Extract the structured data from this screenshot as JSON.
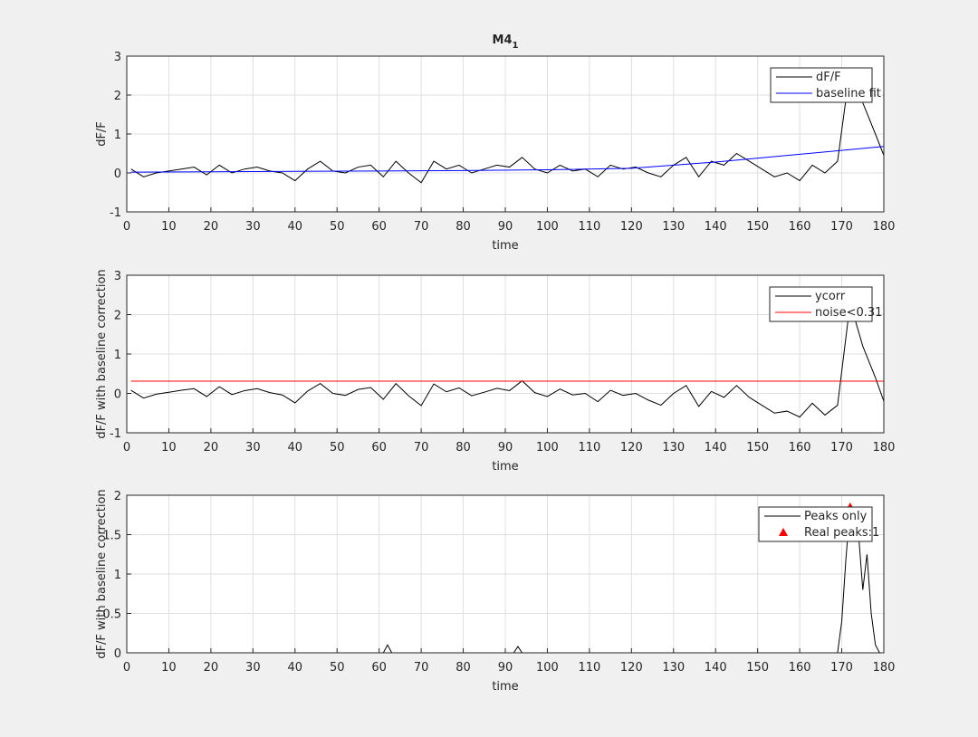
{
  "chart_data": [
    {
      "type": "line",
      "title": "M4",
      "title_subscript": "1",
      "xlabel": "time",
      "ylabel": "dF/F",
      "xlim": [
        0,
        180
      ],
      "xticks": [
        0,
        10,
        20,
        30,
        40,
        50,
        60,
        70,
        80,
        90,
        100,
        110,
        120,
        130,
        140,
        150,
        160,
        170,
        180
      ],
      "ylim": [
        -1,
        3
      ],
      "yticks": [
        -1,
        0,
        1,
        2,
        3
      ],
      "grid": true,
      "legend": "top-right",
      "series": [
        {
          "name": "dF/F",
          "color": "#000000",
          "x": [
            1,
            4,
            7,
            10,
            13,
            16,
            19,
            22,
            25,
            28,
            31,
            34,
            37,
            40,
            43,
            46,
            49,
            52,
            55,
            58,
            61,
            64,
            67,
            70,
            73,
            76,
            79,
            82,
            85,
            88,
            91,
            94,
            97,
            100,
            103,
            106,
            109,
            112,
            115,
            118,
            121,
            124,
            127,
            130,
            133,
            136,
            139,
            142,
            145,
            148,
            151,
            154,
            157,
            160,
            163,
            166,
            169,
            172,
            175,
            178,
            180
          ],
          "values": [
            0.1,
            -0.1,
            0.0,
            0.05,
            0.1,
            0.15,
            -0.05,
            0.2,
            0.0,
            0.1,
            0.15,
            0.05,
            0.0,
            -0.2,
            0.1,
            0.3,
            0.05,
            0.0,
            0.15,
            0.2,
            -0.1,
            0.3,
            0.0,
            -0.25,
            0.3,
            0.1,
            0.2,
            0.0,
            0.1,
            0.2,
            0.15,
            0.4,
            0.1,
            0.0,
            0.2,
            0.05,
            0.1,
            -0.1,
            0.2,
            0.1,
            0.15,
            0.0,
            -0.1,
            0.2,
            0.4,
            -0.1,
            0.3,
            0.2,
            0.5,
            0.3,
            0.1,
            -0.1,
            0.0,
            -0.2,
            0.2,
            0.0,
            0.3,
            2.7,
            1.8,
            1.0,
            0.45
          ]
        },
        {
          "name": "baseline fit",
          "color": "#0000ff",
          "x": [
            1,
            20,
            40,
            60,
            80,
            100,
            120,
            140,
            160,
            180
          ],
          "values": [
            0.02,
            0.03,
            0.04,
            0.05,
            0.06,
            0.08,
            0.12,
            0.28,
            0.48,
            0.68
          ]
        }
      ]
    },
    {
      "type": "line",
      "xlabel": "time",
      "ylabel": "dF/F with baseline correction",
      "xlim": [
        0,
        180
      ],
      "xticks": [
        0,
        10,
        20,
        30,
        40,
        50,
        60,
        70,
        80,
        90,
        100,
        110,
        120,
        130,
        140,
        150,
        160,
        170,
        180
      ],
      "ylim": [
        -1,
        3
      ],
      "yticks": [
        -1,
        0,
        1,
        2,
        3
      ],
      "grid": true,
      "legend": "top-right",
      "series": [
        {
          "name": "ycorr",
          "color": "#000000",
          "x": [
            1,
            4,
            7,
            10,
            13,
            16,
            19,
            22,
            25,
            28,
            31,
            34,
            37,
            40,
            43,
            46,
            49,
            52,
            55,
            58,
            61,
            64,
            67,
            70,
            73,
            76,
            79,
            82,
            85,
            88,
            91,
            94,
            97,
            100,
            103,
            106,
            109,
            112,
            115,
            118,
            121,
            124,
            127,
            130,
            133,
            136,
            139,
            142,
            145,
            148,
            151,
            154,
            157,
            160,
            163,
            166,
            169,
            172,
            175,
            178,
            180
          ],
          "values": [
            0.08,
            -0.12,
            -0.02,
            0.03,
            0.08,
            0.12,
            -0.08,
            0.17,
            -0.03,
            0.07,
            0.12,
            0.02,
            -0.04,
            -0.24,
            0.06,
            0.25,
            0.0,
            -0.05,
            0.1,
            0.15,
            -0.15,
            0.25,
            -0.06,
            -0.31,
            0.24,
            0.04,
            0.14,
            -0.06,
            0.03,
            0.13,
            0.07,
            0.32,
            0.02,
            -0.08,
            0.11,
            -0.04,
            0.0,
            -0.21,
            0.08,
            -0.05,
            0.0,
            -0.17,
            -0.3,
            0.0,
            0.2,
            -0.33,
            0.05,
            -0.1,
            0.2,
            -0.1,
            -0.3,
            -0.5,
            -0.45,
            -0.6,
            -0.25,
            -0.55,
            -0.3,
            2.3,
            1.2,
            0.4,
            -0.2
          ]
        },
        {
          "name": "noise<0.31",
          "color": "#ff0000",
          "x": [
            1,
            180
          ],
          "values": [
            0.31,
            0.31
          ]
        }
      ]
    },
    {
      "type": "line",
      "xlabel": "time",
      "ylabel": "dF/F with baseline correction",
      "xlim": [
        0,
        180
      ],
      "xticks": [
        0,
        10,
        20,
        30,
        40,
        50,
        60,
        70,
        80,
        90,
        100,
        110,
        120,
        130,
        140,
        150,
        160,
        170,
        180
      ],
      "ylim": [
        0,
        2
      ],
      "yticks": [
        0,
        0.5,
        1,
        1.5,
        2
      ],
      "grid": true,
      "legend": "top-right",
      "series": [
        {
          "name": "Peaks only",
          "color": "#000000",
          "x": [
            1,
            61,
            62,
            63,
            92,
            93,
            94,
            169,
            170,
            171,
            172,
            173,
            174,
            175,
            176,
            177,
            178,
            179,
            180
          ],
          "values": [
            0,
            0,
            0.1,
            0,
            0,
            0.08,
            0,
            0,
            0.4,
            1.2,
            1.85,
            1.6,
            1.5,
            0.8,
            1.25,
            0.5,
            0.1,
            0,
            0
          ]
        },
        {
          "name": "Real peaks:1",
          "color": "#ff0000",
          "marker": "triangle",
          "x": [
            172
          ],
          "values": [
            1.85
          ]
        }
      ]
    }
  ]
}
